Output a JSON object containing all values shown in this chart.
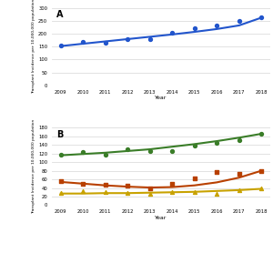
{
  "years": [
    2009,
    2010,
    2011,
    2012,
    2013,
    2014,
    2015,
    2016,
    2017,
    2018
  ],
  "panel_a": {
    "label": "A",
    "observed": [
      155,
      168,
      163,
      178,
      178,
      202,
      222,
      232,
      248,
      262
    ],
    "fitted": [
      152,
      161,
      170,
      179,
      188,
      197,
      207,
      218,
      232,
      262
    ],
    "line_color": "#2255cc",
    "dot_color": "#2255cc",
    "ylabel": "Transplant Incidence per 10,000,000 population",
    "ylim": [
      0,
      300
    ],
    "yticks": [
      0,
      50,
      100,
      150,
      200,
      250,
      300
    ]
  },
  "panel_b": {
    "label": "B",
    "autologous_obs": [
      118,
      123,
      118,
      130,
      125,
      125,
      138,
      145,
      152,
      166
    ],
    "autologous_fit": [
      116,
      119,
      122,
      126,
      130,
      136,
      142,
      149,
      157,
      166
    ],
    "related_obs": [
      55,
      50,
      48,
      45,
      40,
      50,
      63,
      78,
      73,
      80
    ],
    "related_fit": [
      54,
      50,
      46,
      43,
      41,
      42,
      46,
      53,
      64,
      80
    ],
    "unrelated_obs": [
      28,
      32,
      30,
      28,
      26,
      30,
      30,
      26,
      34,
      38
    ],
    "unrelated_fit": [
      27,
      27,
      28,
      28,
      29,
      30,
      31,
      33,
      35,
      38
    ],
    "autologous_color": "#3a7d28",
    "related_color": "#b84000",
    "unrelated_color": "#c8a200",
    "ylabel": "Transplant Incidence per 10,000,000 population",
    "ylim": [
      0,
      180
    ],
    "yticks": [
      0,
      20,
      40,
      60,
      80,
      100,
      120,
      140,
      160,
      180
    ]
  },
  "xlabel": "Year",
  "background_color": "#ffffff",
  "grid_color": "#dddddd"
}
